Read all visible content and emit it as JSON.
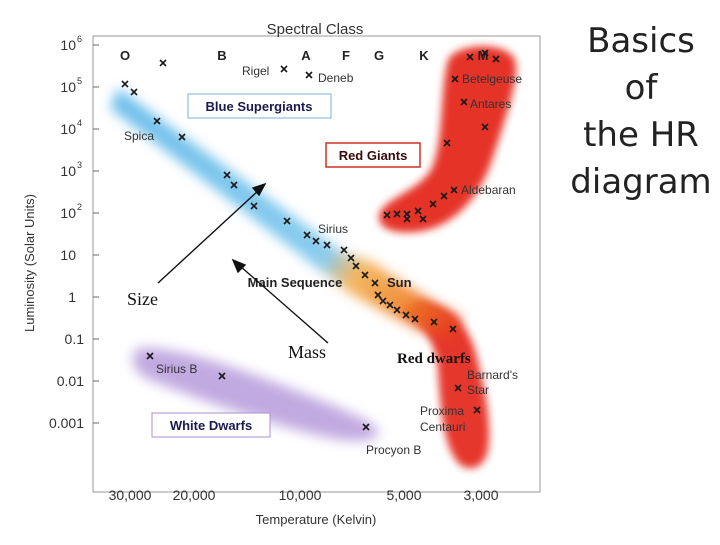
{
  "slide": {
    "title_lines": [
      "Basics of",
      "the HR",
      "diagram"
    ]
  },
  "diagram": {
    "spectral_label": "Spectral Class",
    "spectral_classes": [
      "O",
      "B",
      "A",
      "F",
      "G",
      "K",
      "M"
    ],
    "y_axis_label": "Luminosity (Solar Units)",
    "y_ticks": [
      "10",
      "10",
      "10",
      "10",
      "10",
      "10",
      "1",
      "0.1",
      "0.01",
      "0.001"
    ],
    "y_tick_exponents": [
      "6",
      "5",
      "4",
      "3",
      "2",
      "",
      "",
      "",
      "",
      ""
    ],
    "x_axis_label": "Temperature (Kelvin)",
    "x_ticks": [
      "30,000",
      "20,000",
      "10,000",
      "5,000",
      "3,000"
    ],
    "regions": {
      "blue_supergiants": "Blue Supergiants",
      "red_giants": "Red Giants",
      "main_sequence": "Main Sequence",
      "white_dwarfs": "White Dwarfs"
    },
    "stars": {
      "rigel": "Rigel",
      "deneb": "Deneb",
      "spica": "Spica",
      "betelgeuse": "Betelgeuse",
      "antares": "Antares",
      "aldebaran": "Aldebaran",
      "sirius": "Sirius",
      "sun": "Sun",
      "sirius_b": "Sirius B",
      "barnards_star_1": "Barnard's",
      "barnards_star_2": "Star",
      "proxima_1": "Proxima",
      "proxima_2": "Centauri",
      "procyon_b": "Procyon B"
    },
    "annotations": {
      "size": "Size",
      "mass": "Mass",
      "red_dwarfs": "Red dwarfs"
    },
    "colors": {
      "blue_band": "#5fb8ea",
      "orange_band": "#f5a338",
      "red_region": "#e42313",
      "white_dwarf_band": "#b79bdc"
    }
  }
}
